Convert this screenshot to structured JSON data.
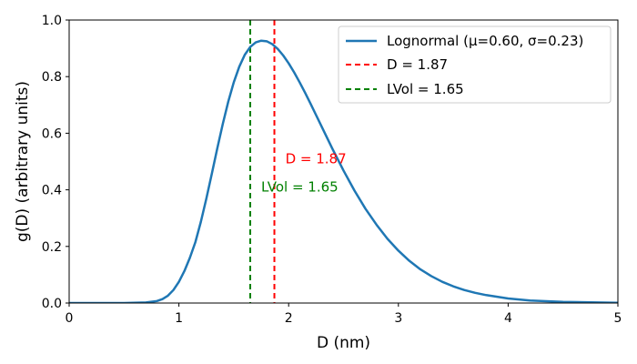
{
  "chart_data": {
    "type": "line",
    "title": "",
    "xlabel": "D (nm)",
    "ylabel": "g(D) (arbitrary units)",
    "xlim": [
      0,
      5
    ],
    "ylim": [
      0,
      1.0
    ],
    "x_ticks": [
      0,
      1,
      2,
      3,
      4,
      5
    ],
    "x_tick_labels": [
      "0",
      "1",
      "2",
      "3",
      "4",
      "5"
    ],
    "y_ticks": [
      0.0,
      0.2,
      0.4,
      0.6,
      0.8,
      1.0
    ],
    "y_tick_labels": [
      "0.0",
      "0.2",
      "0.4",
      "0.6",
      "0.8",
      "1.0"
    ],
    "grid": false,
    "legend_position": "top-right",
    "series": [
      {
        "name": "Lognormal (μ=0.60, σ=0.23)",
        "color": "#1f77b4",
        "style": "solid",
        "x": [
          0.0,
          0.5,
          0.7,
          0.8,
          0.85,
          0.9,
          0.95,
          1.0,
          1.05,
          1.1,
          1.15,
          1.2,
          1.25,
          1.3,
          1.35,
          1.4,
          1.45,
          1.5,
          1.55,
          1.6,
          1.65,
          1.7,
          1.75,
          1.8,
          1.85,
          1.9,
          1.95,
          2.0,
          2.05,
          2.1,
          2.15,
          2.2,
          2.25,
          2.3,
          2.4,
          2.5,
          2.6,
          2.7,
          2.8,
          2.9,
          3.0,
          3.1,
          3.2,
          3.3,
          3.4,
          3.5,
          3.6,
          3.7,
          3.8,
          4.0,
          4.2,
          4.5,
          5.0
        ],
        "y": [
          0.0,
          0.0,
          0.002,
          0.007,
          0.014,
          0.026,
          0.046,
          0.075,
          0.113,
          0.16,
          0.215,
          0.287,
          0.369,
          0.457,
          0.547,
          0.633,
          0.712,
          0.78,
          0.835,
          0.877,
          0.905,
          0.921,
          0.927,
          0.925,
          0.915,
          0.898,
          0.875,
          0.847,
          0.815,
          0.78,
          0.743,
          0.704,
          0.664,
          0.624,
          0.544,
          0.468,
          0.397,
          0.333,
          0.277,
          0.227,
          0.185,
          0.149,
          0.119,
          0.095,
          0.075,
          0.059,
          0.046,
          0.036,
          0.028,
          0.016,
          0.009,
          0.004,
          0.001
        ]
      }
    ],
    "vlines": [
      {
        "name": "D = 1.87",
        "x": 1.87,
        "color": "#ff0000",
        "style": "dashed",
        "label_text": "D = 1.87",
        "label_x": 1.97,
        "label_y": 0.51
      },
      {
        "name": "LVol = 1.65",
        "x": 1.65,
        "color": "#008000",
        "style": "dashed",
        "label_text": "LVol = 1.65",
        "label_x": 1.75,
        "label_y": 0.41
      }
    ]
  }
}
